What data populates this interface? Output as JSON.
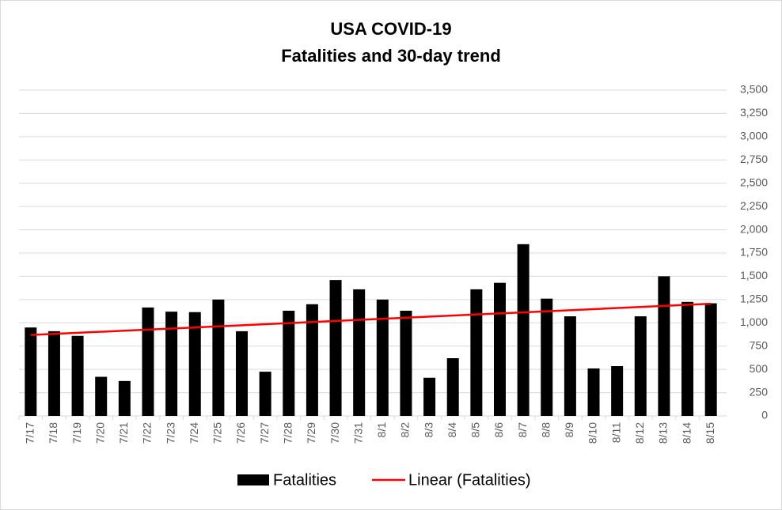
{
  "chart_data": {
    "type": "bar",
    "title": [
      "USA COVID-19",
      "Fatalities and 30-day trend"
    ],
    "categories": [
      "7/17",
      "7/18",
      "7/19",
      "7/20",
      "7/21",
      "7/22",
      "7/23",
      "7/24",
      "7/25",
      "7/26",
      "7/27",
      "7/28",
      "7/29",
      "7/30",
      "7/31",
      "8/1",
      "8/2",
      "8/3",
      "8/4",
      "8/5",
      "8/6",
      "8/7",
      "8/8",
      "8/9",
      "8/10",
      "8/11",
      "8/12",
      "8/13",
      "8/14",
      "8/15"
    ],
    "series": [
      {
        "name": "Fatalities",
        "color": "#000000",
        "values": [
          950,
          910,
          860,
          420,
          375,
          1165,
          1120,
          1115,
          1250,
          910,
          475,
          1130,
          1200,
          1460,
          1360,
          1250,
          1130,
          410,
          620,
          1360,
          1430,
          1845,
          1260,
          1070,
          510,
          535,
          1070,
          1500,
          1225,
          1210
        ]
      },
      {
        "name": "Linear (Fatalities)",
        "color": "#ff0000",
        "trend": "linear"
      }
    ],
    "ylim": [
      0,
      3500
    ],
    "yticks": [
      0,
      250,
      500,
      750,
      {
        "value": 1000,
        "label": "1,000"
      },
      {
        "value": 1250,
        "label": "1,250"
      },
      {
        "value": 1500,
        "label": "1,500"
      },
      {
        "value": 1750,
        "label": "1,750"
      },
      {
        "value": 2000,
        "label": "2,000"
      },
      {
        "value": 2250,
        "label": "2,250"
      },
      {
        "value": 2500,
        "label": "2,500"
      },
      {
        "value": 2750,
        "label": "2,750"
      },
      {
        "value": 3000,
        "label": "3,000"
      },
      {
        "value": 3250,
        "label": "3,250"
      },
      {
        "value": 3500,
        "label": "3,500"
      }
    ],
    "grid": true,
    "legend": "bottom"
  }
}
